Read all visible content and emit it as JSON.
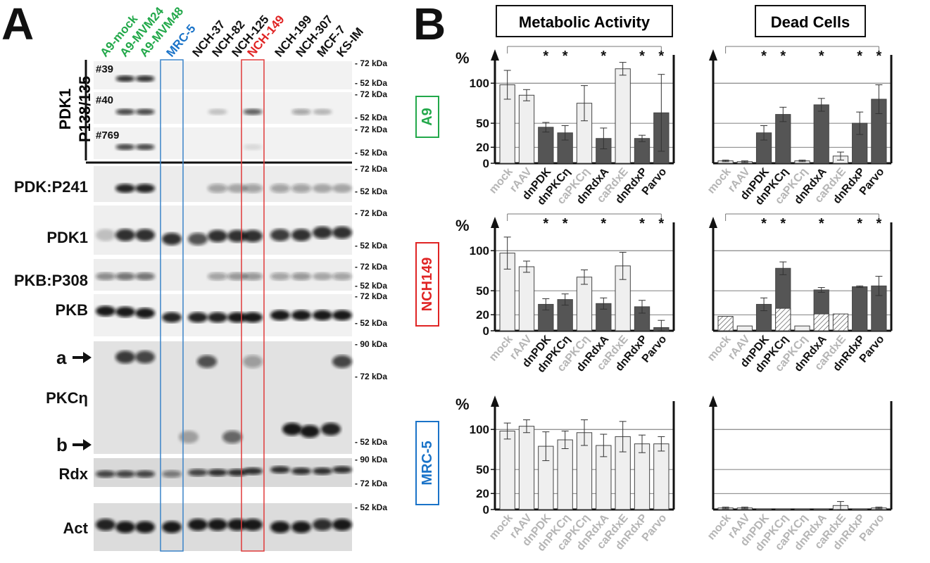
{
  "panel_a": {
    "letter": "A",
    "lanes": [
      {
        "label": "A9-mock",
        "color": "#22a84a"
      },
      {
        "label": "A9-MVM24",
        "color": "#22a84a"
      },
      {
        "label": "A9-MVM48",
        "color": "#22a84a"
      },
      {
        "label": "MRC-5",
        "color": "#1a73c8"
      },
      {
        "label": "NCH-37",
        "color": "#111111"
      },
      {
        "label": "NCH-82",
        "color": "#111111"
      },
      {
        "label": "NCH-125",
        "color": "#111111"
      },
      {
        "label": "NCH-149",
        "color": "#e02424"
      },
      {
        "label": "NCH-199",
        "color": "#111111"
      },
      {
        "label": "NCH-307",
        "color": "#111111"
      },
      {
        "label": "MCF-7",
        "color": "#111111"
      },
      {
        "label": "KS-IM",
        "color": "#111111"
      }
    ],
    "group_label_1": "PDK1",
    "group_label_2": "P138/135",
    "sub_blots": [
      {
        "tag": "#39",
        "markers": [
          "- 72 kDa",
          "- 52 kDa"
        ]
      },
      {
        "tag": "#40",
        "markers": [
          "- 72 kDa",
          "- 52 kDa"
        ]
      },
      {
        "tag": "#769",
        "markers": [
          "- 72 kDa",
          "- 52 kDa"
        ]
      }
    ],
    "blots": [
      {
        "label": "PDK:P241",
        "markers": [
          "- 72 kDa",
          "- 52 kDa"
        ]
      },
      {
        "label": "PDK1",
        "markers": [
          "- 72 kDa",
          "- 52 kDa"
        ]
      },
      {
        "label": "PKB:P308",
        "markers": [
          "- 72 kDa",
          "- 52 kDa"
        ]
      },
      {
        "label": "PKB",
        "markers": [
          "- 72 kDa",
          "- 52 kDa"
        ]
      },
      {
        "label": "PKCη",
        "markers": [
          "- 90 kDa",
          "- 72 kDa",
          "- 52 kDa"
        ],
        "arrow_a": "a",
        "arrow_b": "b"
      },
      {
        "label": "Rdx",
        "markers": [
          "- 90 kDa",
          "- 72 kDa"
        ]
      },
      {
        "label": "Act",
        "markers": [
          "- 52 kDa"
        ]
      }
    ]
  },
  "panel_b": {
    "letter": "B",
    "col_titles": [
      "Metabolic Activity",
      "Dead Cells"
    ],
    "categories": [
      "mock",
      "rAAV",
      "dnPDK",
      "dnPKCη",
      "caPKCη",
      "dnRdxA",
      "caRdxE",
      "dnRdxP",
      "Parvo"
    ],
    "y_unit": "%",
    "y_ticks": [
      100,
      50,
      20,
      0
    ],
    "colors": {
      "light": "#efefef",
      "dark": "#555555",
      "grey_text": "#b5b5b5",
      "black_text": "#111111"
    },
    "rows": [
      {
        "cell": "A9",
        "color": "#22a84a"
      },
      {
        "cell": "NCH149",
        "color": "#e02424"
      },
      {
        "cell": "MRC-5",
        "color": "#1a73c8"
      }
    ]
  },
  "chart_data": [
    {
      "type": "bar",
      "cell_line": "A9",
      "title": "Metabolic Activity",
      "ylabel": "%",
      "ylim": [
        0,
        130
      ],
      "categories": [
        "mock",
        "rAAV",
        "dnPDK",
        "dnPKCη",
        "caPKCη",
        "dnRdxA",
        "caRdxE",
        "dnRdxP",
        "Parvo"
      ],
      "values": [
        98,
        85,
        45,
        38,
        75,
        31,
        118,
        31,
        63
      ],
      "errors": [
        18,
        7,
        6,
        9,
        22,
        13,
        8,
        4,
        48
      ],
      "style": [
        "light",
        "light",
        "dark",
        "dark",
        "light",
        "dark",
        "light",
        "dark",
        "dark"
      ],
      "significant": [
        false,
        false,
        true,
        true,
        false,
        true,
        false,
        true,
        true
      ]
    },
    {
      "type": "bar",
      "cell_line": "A9",
      "title": "Dead Cells",
      "ylabel": "",
      "ylim": [
        0,
        130
      ],
      "categories": [
        "mock",
        "rAAV",
        "dnPDK",
        "dnPKCη",
        "caPKCη",
        "dnRdxA",
        "caRdxE",
        "dnRdxP",
        "Parvo"
      ],
      "values": [
        3,
        2,
        38,
        61,
        3,
        73,
        9,
        50,
        80
      ],
      "errors": [
        1,
        1,
        9,
        9,
        1,
        8,
        5,
        14,
        18
      ],
      "style": [
        "light",
        "light",
        "dark",
        "dark",
        "light",
        "dark",
        "light",
        "dark",
        "dark"
      ],
      "significant": [
        false,
        false,
        true,
        true,
        false,
        true,
        false,
        true,
        true
      ]
    },
    {
      "type": "bar",
      "cell_line": "NCH149",
      "title": "Metabolic Activity",
      "ylabel": "%",
      "ylim": [
        0,
        130
      ],
      "categories": [
        "mock",
        "rAAV",
        "dnPDK",
        "dnPKCη",
        "caPKCη",
        "dnRdxA",
        "caRdxE",
        "dnRdxP",
        "Parvo"
      ],
      "values": [
        97,
        80,
        33,
        39,
        67,
        34,
        81,
        30,
        4
      ],
      "errors": [
        20,
        7,
        7,
        7,
        9,
        7,
        17,
        8,
        9
      ],
      "style": [
        "light",
        "light",
        "dark",
        "dark",
        "light",
        "dark",
        "light",
        "dark",
        "dark"
      ],
      "significant": [
        false,
        false,
        true,
        true,
        false,
        true,
        false,
        true,
        true
      ]
    },
    {
      "type": "bar",
      "cell_line": "NCH149",
      "title": "Dead Cells",
      "ylabel": "",
      "ylim": [
        0,
        130
      ],
      "categories": [
        "mock",
        "rAAV",
        "dnPDK",
        "dnPKCη",
        "caPKCη",
        "dnRdxA",
        "caRdxE",
        "dnRdxP",
        "Parvo"
      ],
      "values": [
        18,
        6,
        33,
        78,
        6,
        51,
        21,
        55,
        56
      ],
      "hatched": [
        18,
        0,
        0,
        28,
        6,
        21,
        21,
        0,
        0
      ],
      "errors": [
        0,
        0,
        8,
        8,
        0,
        3,
        0,
        1,
        12
      ],
      "style": [
        "hatch",
        "light",
        "dark",
        "dark",
        "light",
        "dark",
        "hatch",
        "dark",
        "dark"
      ],
      "significant": [
        false,
        false,
        true,
        true,
        false,
        true,
        false,
        true,
        true
      ]
    },
    {
      "type": "bar",
      "cell_line": "MRC-5",
      "title": "Metabolic Activity",
      "ylabel": "%",
      "ylim": [
        0,
        130
      ],
      "categories": [
        "mock",
        "rAAV",
        "dnPDK",
        "dnPKCη",
        "caPKCη",
        "dnRdxA",
        "caRdxE",
        "dnRdxP",
        "Parvo"
      ],
      "values": [
        98,
        104,
        79,
        87,
        96,
        80,
        91,
        82,
        82
      ],
      "errors": [
        10,
        8,
        18,
        11,
        16,
        14,
        19,
        11,
        9
      ],
      "style": [
        "light",
        "light",
        "light",
        "light",
        "light",
        "light",
        "light",
        "light",
        "light"
      ],
      "significant": [
        false,
        false,
        false,
        false,
        false,
        false,
        false,
        false,
        false
      ]
    },
    {
      "type": "bar",
      "cell_line": "MRC-5",
      "title": "Dead Cells",
      "ylabel": "",
      "ylim": [
        0,
        130
      ],
      "categories": [
        "mock",
        "rAAV",
        "dnPDK",
        "dnPKCη",
        "caPKCη",
        "dnRdxA",
        "caRdxE",
        "dnRdxP",
        "Parvo"
      ],
      "values": [
        2,
        2,
        1,
        1,
        1,
        1,
        5,
        1,
        2
      ],
      "errors": [
        1,
        1,
        0,
        0,
        0,
        0,
        5,
        0,
        1
      ],
      "style": [
        "light",
        "light",
        "light",
        "light",
        "light",
        "light",
        "light",
        "light",
        "light"
      ],
      "significant": [
        false,
        false,
        false,
        false,
        false,
        false,
        false,
        false,
        false
      ]
    }
  ]
}
